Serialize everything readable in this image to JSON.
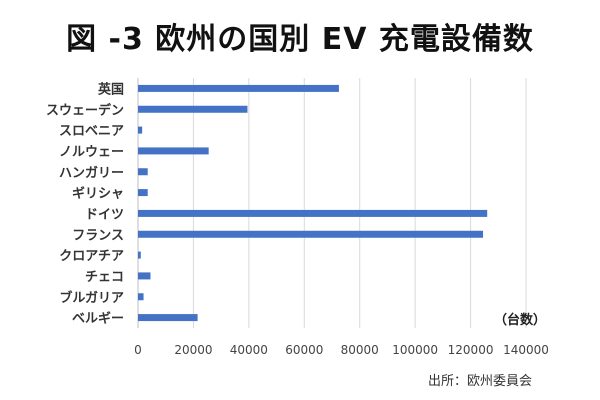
{
  "title": "図 -3 欧州の国別 EV 充電設備数",
  "unit_label": "（台数）",
  "source": "出所：欧州委員会",
  "colors": {
    "bar": "#4472C4",
    "grid": "#D9D9D9",
    "axis": "#BFBFBF"
  },
  "chart_data": {
    "type": "bar",
    "orientation": "horizontal",
    "title": "図 -3 欧州の国別 EV 充電設備数",
    "xlabel": "（台数）",
    "ylabel": "",
    "xlim": [
      0,
      140000
    ],
    "x_ticks": [
      0,
      20000,
      40000,
      60000,
      80000,
      100000,
      120000,
      140000
    ],
    "x_tick_labels": [
      "0",
      "20000",
      "40000",
      "60000",
      "80000",
      "100000",
      "120000",
      "140000"
    ],
    "grid": true,
    "legend": false,
    "categories": [
      "英国",
      "スウェーデン",
      "スロベニア",
      "ノルウェー",
      "ハンガリー",
      "ギリシャ",
      "ドイツ",
      "フランス",
      "クロアチア",
      "チェコ",
      "ブルガリア",
      "ベルギー"
    ],
    "values": [
      72500,
      39500,
      1500,
      25500,
      3500,
      3500,
      126000,
      124500,
      1000,
      4500,
      2000,
      21500
    ]
  }
}
